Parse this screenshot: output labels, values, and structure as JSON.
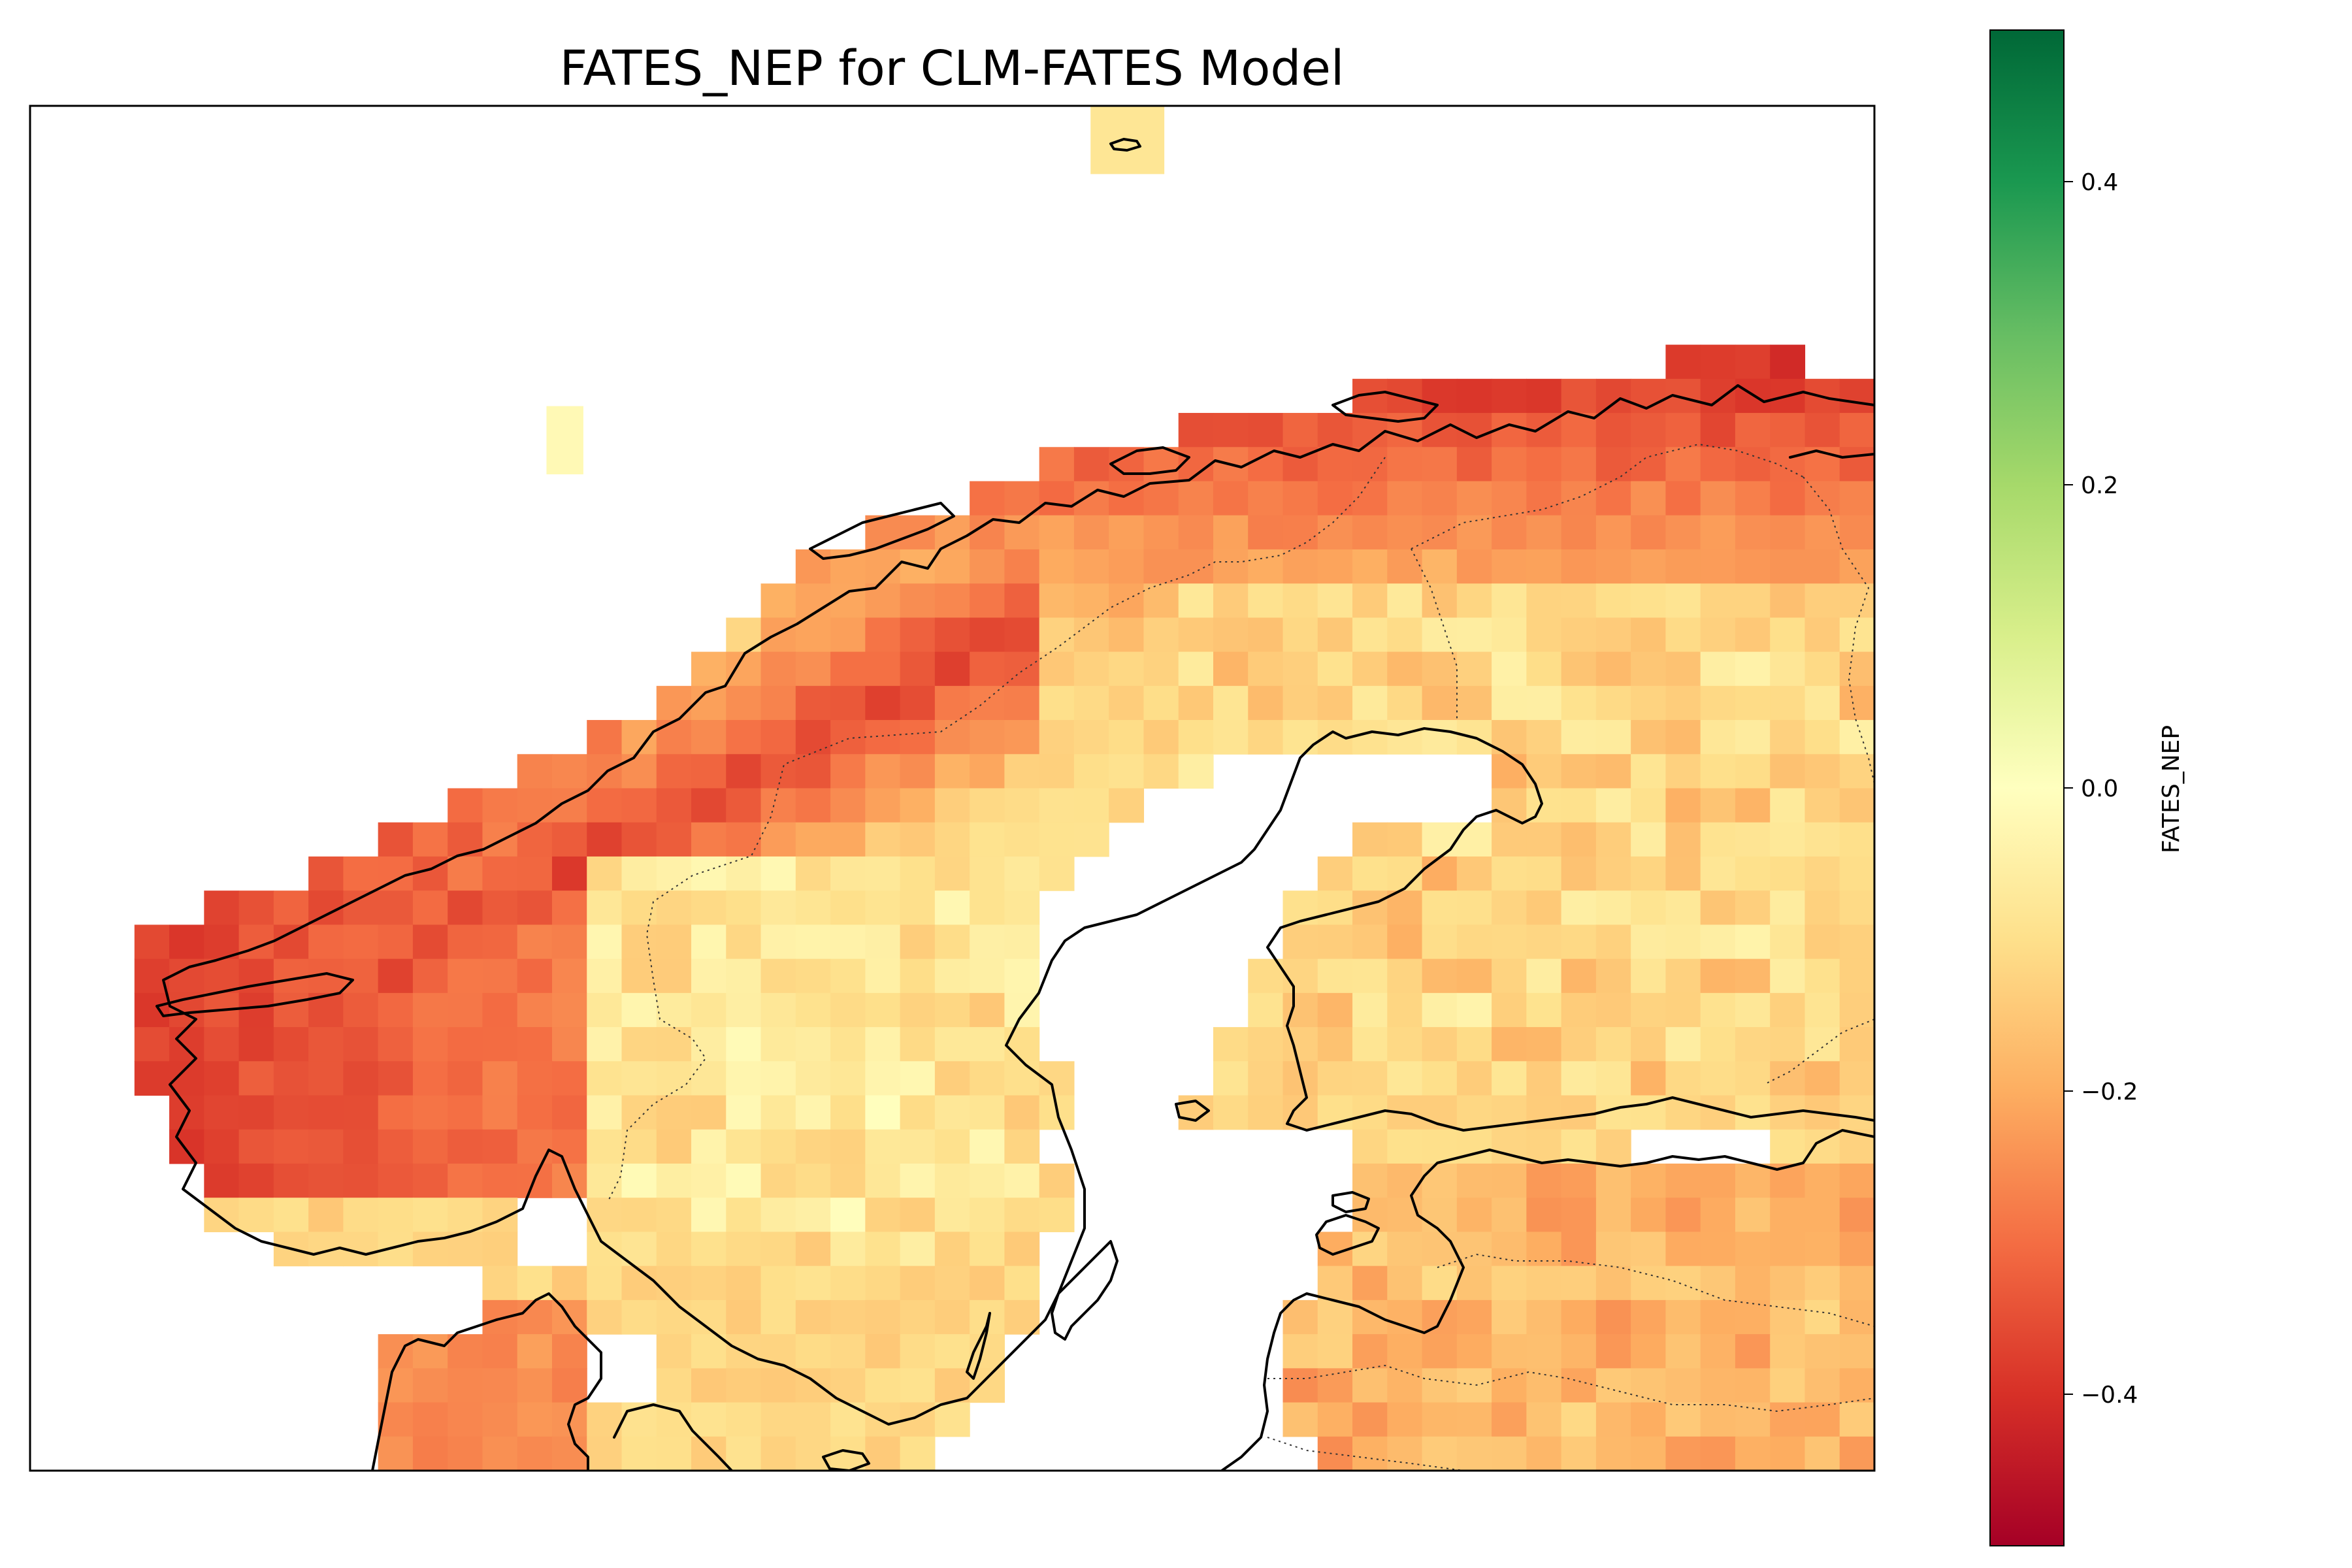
{
  "chart_data": {
    "type": "heatmap",
    "title": "FATES_NEP for CLM-FATES Model",
    "colorbar": {
      "label": "FATES_NEP",
      "range": [
        -0.5,
        0.5
      ],
      "ticks": [
        -0.4,
        -0.2,
        0.0,
        0.2,
        0.4
      ],
      "tick_labels": [
        "−0.4",
        "−0.2",
        "0.0",
        "0.2",
        "0.4"
      ],
      "colormap": "RdYlGn",
      "colors": [
        "#a50026",
        "#d73027",
        "#f46d43",
        "#fdae61",
        "#fee08b",
        "#ffffbf",
        "#d9ef8b",
        "#a6d96a",
        "#66bd63",
        "#1a9850",
        "#006837"
      ]
    },
    "grid": {
      "cols": 53,
      "rows": 40,
      "note": "",
      "values": []
    },
    "land_regions": [
      {
        "name": "",
        "nep": -0.42
      },
      {
        "name": "",
        "nep": -0.36
      },
      {
        "name": "",
        "nep": -0.1
      },
      {
        "name": "",
        "nep": -0.12
      },
      {
        "name": "",
        "nep": -0.22
      }
    ]
  }
}
